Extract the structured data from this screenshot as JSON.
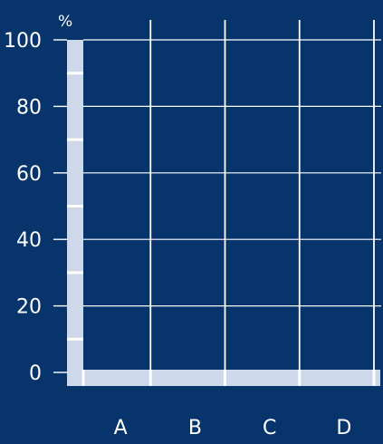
{
  "chart_data": {
    "type": "bar",
    "categories": [
      "A",
      "B",
      "C",
      "D"
    ],
    "series": [],
    "ylabel": "%",
    "ylim": [
      0,
      100
    ],
    "yticks": [
      0,
      20,
      40,
      60,
      80,
      100
    ],
    "grid": true
  },
  "colors": {
    "background": "#07346a",
    "axis_band": "#cdd8ea",
    "grid": "#ffffff",
    "text": "#ffffff"
  }
}
